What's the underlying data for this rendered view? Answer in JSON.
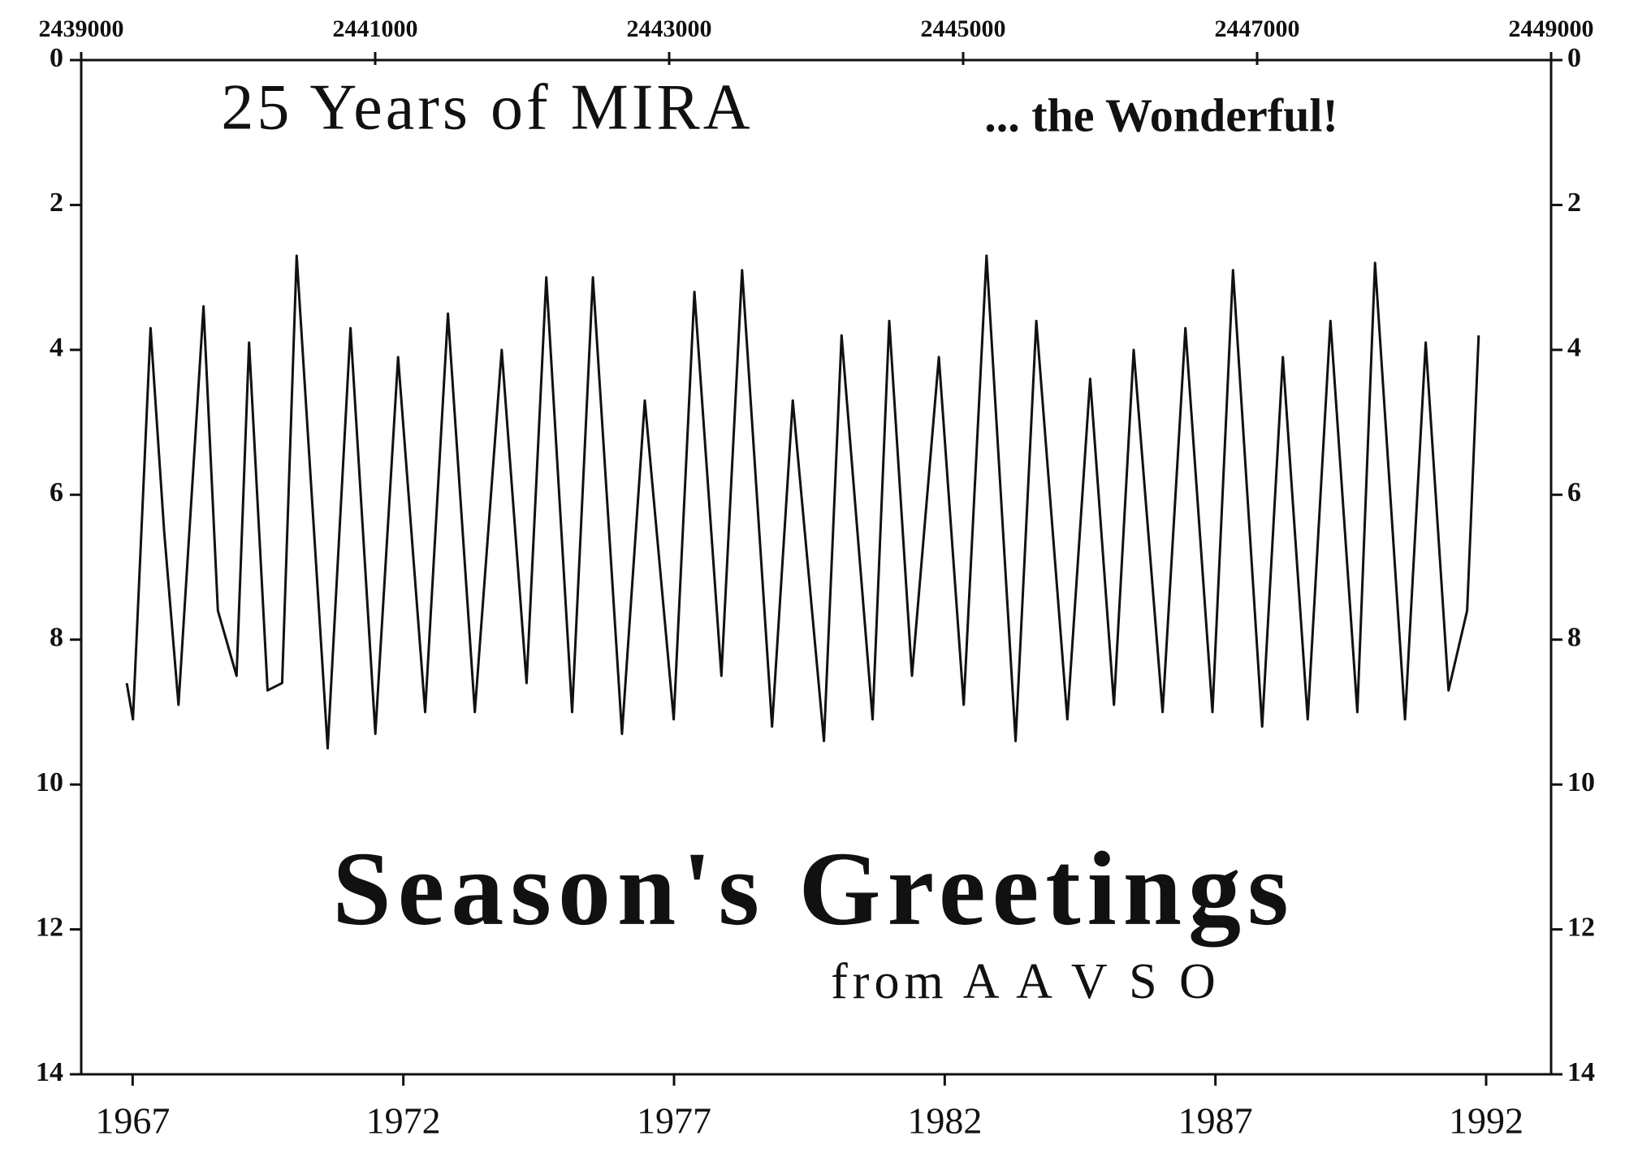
{
  "chart_data": {
    "type": "line",
    "title": "25 Years of MIRA",
    "subtitle": "... the Wonderful!",
    "annotations": [
      "Season's Greetings",
      "from A A V S O"
    ],
    "x": [
      2439310,
      2439352,
      2439472,
      2439564,
      2439662,
      2439832,
      2439930,
      2440057,
      2440142,
      2440268,
      2440367,
      2440466,
      2440677,
      2440832,
      2441001,
      2441156,
      2441340,
      2441495,
      2441678,
      2441861,
      2442030,
      2442164,
      2442340,
      2442481,
      2442679,
      2442834,
      2443031,
      2443172,
      2443355,
      2443496,
      2443700,
      2443841,
      2444053,
      2444173,
      2444384,
      2444497,
      2444652,
      2444835,
      2445004,
      2445159,
      2445357,
      2445498,
      2445709,
      2445864,
      2446026,
      2446160,
      2446357,
      2446512,
      2446696,
      2446836,
      2447034,
      2447175,
      2447344,
      2447499,
      2447682,
      2447802,
      2448006,
      2448147,
      2448302,
      2448429,
      2448507
    ],
    "series": [
      {
        "color": "#111111",
        "values": [
          8.6,
          9.1,
          3.7,
          6.5,
          8.9,
          3.4,
          7.6,
          8.5,
          3.9,
          8.7,
          8.6,
          2.7,
          9.5,
          3.7,
          9.3,
          4.1,
          9.0,
          3.5,
          9.0,
          4.0,
          8.6,
          3.0,
          9.0,
          3.0,
          9.3,
          4.7,
          9.1,
          3.2,
          8.5,
          2.9,
          9.2,
          4.7,
          9.4,
          3.8,
          9.1,
          3.6,
          8.5,
          4.1,
          8.9,
          2.7,
          9.4,
          3.6,
          9.1,
          4.4,
          8.9,
          4.0,
          9.0,
          3.7,
          9.0,
          2.9,
          9.2,
          4.1,
          9.1,
          3.6,
          9.0,
          2.8,
          9.1,
          3.9,
          8.7,
          7.6,
          3.8
        ]
      }
    ],
    "xlim": [
      2439000,
      2449000
    ],
    "xticks": [
      2439000,
      2441000,
      2443000,
      2445000,
      2447000,
      2449000
    ],
    "x2lim": [
      1966.05,
      1993.2
    ],
    "x2ticks": [
      1967,
      1972,
      1977,
      1982,
      1987,
      1992
    ],
    "ylim": [
      0,
      14
    ],
    "yticks": [
      0,
      2,
      4,
      6,
      8,
      10,
      12,
      14
    ],
    "y2lim": [
      0,
      14
    ],
    "y2ticks": [
      0,
      2,
      4,
      6,
      8,
      10,
      12,
      14
    ],
    "y_inverted": true
  }
}
